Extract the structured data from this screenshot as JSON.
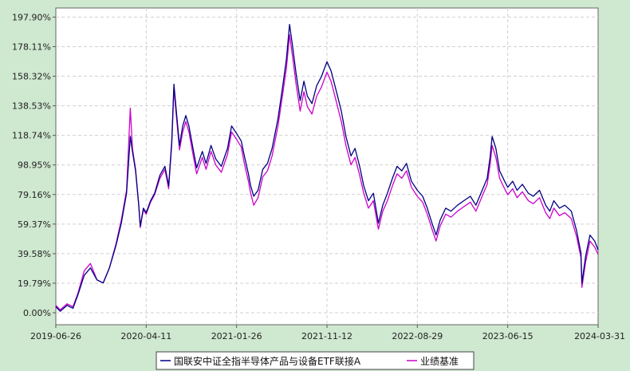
{
  "chart_data": {
    "type": "line",
    "ytick_labels": [
      "197.90%",
      "178.11%",
      "158.32%",
      "138.53%",
      "118.74%",
      "98.95%",
      "79.16%",
      "59.37%",
      "39.58%",
      "19.79%",
      "0.00%"
    ],
    "ytick_values": [
      197.9,
      178.11,
      158.32,
      138.53,
      118.74,
      98.95,
      79.16,
      59.37,
      39.58,
      19.79,
      0.0
    ],
    "xtick_labels": [
      "2019-06-26",
      "2020-04-11",
      "2021-01-26",
      "2021-11-12",
      "2022-08-29",
      "2023-06-15",
      "2024-03-31"
    ],
    "xtick_dates": [
      "2019-06-26",
      "2020-04-11",
      "2021-01-26",
      "2021-11-12",
      "2022-08-29",
      "2023-06-15",
      "2024-03-31"
    ],
    "x_range": [
      "2019-06-26",
      "2024-03-31"
    ],
    "ylim": [
      -8,
      204
    ],
    "grid": true,
    "legend_position": "bottom-center",
    "series": [
      {
        "name": "国联安中证全指半导体产品与设备ETF联接A",
        "color": "#000080",
        "points": [
          [
            "2019-06-26",
            4
          ],
          [
            "2019-07-10",
            1
          ],
          [
            "2019-08-01",
            5
          ],
          [
            "2019-08-20",
            3
          ],
          [
            "2019-09-05",
            12
          ],
          [
            "2019-09-25",
            25
          ],
          [
            "2019-10-15",
            30
          ],
          [
            "2019-11-05",
            22
          ],
          [
            "2019-11-25",
            20
          ],
          [
            "2019-12-15",
            30
          ],
          [
            "2020-01-05",
            45
          ],
          [
            "2020-01-22",
            60
          ],
          [
            "2020-02-08",
            80
          ],
          [
            "2020-02-20",
            118
          ],
          [
            "2020-02-27",
            108
          ],
          [
            "2020-03-08",
            95
          ],
          [
            "2020-03-18",
            72
          ],
          [
            "2020-03-23",
            58
          ],
          [
            "2020-04-02",
            70
          ],
          [
            "2020-04-11",
            67
          ],
          [
            "2020-04-25",
            75
          ],
          [
            "2020-05-08",
            80
          ],
          [
            "2020-05-25",
            92
          ],
          [
            "2020-06-10",
            98
          ],
          [
            "2020-06-22",
            85
          ],
          [
            "2020-07-02",
            115
          ],
          [
            "2020-07-09",
            153
          ],
          [
            "2020-07-18",
            132
          ],
          [
            "2020-07-27",
            112
          ],
          [
            "2020-08-06",
            125
          ],
          [
            "2020-08-16",
            132
          ],
          [
            "2020-08-26",
            125
          ],
          [
            "2020-09-08",
            110
          ],
          [
            "2020-09-20",
            97
          ],
          [
            "2020-10-08",
            108
          ],
          [
            "2020-10-20",
            100
          ],
          [
            "2020-11-05",
            112
          ],
          [
            "2020-11-20",
            103
          ],
          [
            "2020-12-08",
            98
          ],
          [
            "2020-12-28",
            110
          ],
          [
            "2021-01-10",
            125
          ],
          [
            "2021-01-26",
            120
          ],
          [
            "2021-02-10",
            115
          ],
          [
            "2021-02-20",
            105
          ],
          [
            "2021-03-05",
            93
          ],
          [
            "2021-03-12",
            85
          ],
          [
            "2021-03-22",
            78
          ],
          [
            "2021-04-05",
            82
          ],
          [
            "2021-04-20",
            96
          ],
          [
            "2021-05-05",
            100
          ],
          [
            "2021-05-20",
            110
          ],
          [
            "2021-06-08",
            130
          ],
          [
            "2021-06-22",
            150
          ],
          [
            "2021-07-05",
            170
          ],
          [
            "2021-07-15",
            193
          ],
          [
            "2021-07-25",
            178
          ],
          [
            "2021-08-05",
            160
          ],
          [
            "2021-08-18",
            142
          ],
          [
            "2021-08-30",
            155
          ],
          [
            "2021-09-10",
            145
          ],
          [
            "2021-09-25",
            140
          ],
          [
            "2021-10-10",
            152
          ],
          [
            "2021-10-25",
            158
          ],
          [
            "2021-11-12",
            168
          ],
          [
            "2021-11-25",
            162
          ],
          [
            "2021-12-10",
            150
          ],
          [
            "2021-12-28",
            135
          ],
          [
            "2022-01-12",
            118
          ],
          [
            "2022-01-28",
            105
          ],
          [
            "2022-02-10",
            110
          ],
          [
            "2022-02-25",
            98
          ],
          [
            "2022-03-10",
            85
          ],
          [
            "2022-03-25",
            75
          ],
          [
            "2022-04-10",
            80
          ],
          [
            "2022-04-26",
            60
          ],
          [
            "2022-05-10",
            72
          ],
          [
            "2022-05-25",
            80
          ],
          [
            "2022-06-10",
            90
          ],
          [
            "2022-06-25",
            98
          ],
          [
            "2022-07-10",
            95
          ],
          [
            "2022-07-25",
            100
          ],
          [
            "2022-08-10",
            88
          ],
          [
            "2022-08-29",
            82
          ],
          [
            "2022-09-15",
            78
          ],
          [
            "2022-09-30",
            70
          ],
          [
            "2022-10-15",
            60
          ],
          [
            "2022-10-28",
            52
          ],
          [
            "2022-11-10",
            62
          ],
          [
            "2022-11-28",
            70
          ],
          [
            "2022-12-15",
            68
          ],
          [
            "2023-01-05",
            72
          ],
          [
            "2023-01-25",
            75
          ],
          [
            "2023-02-15",
            78
          ],
          [
            "2023-03-05",
            72
          ],
          [
            "2023-03-25",
            82
          ],
          [
            "2023-04-10",
            90
          ],
          [
            "2023-04-20",
            105
          ],
          [
            "2023-04-26",
            118
          ],
          [
            "2023-05-08",
            110
          ],
          [
            "2023-05-20",
            95
          ],
          [
            "2023-06-05",
            88
          ],
          [
            "2023-06-15",
            84
          ],
          [
            "2023-07-01",
            88
          ],
          [
            "2023-07-15",
            82
          ],
          [
            "2023-08-01",
            86
          ],
          [
            "2023-08-20",
            80
          ],
          [
            "2023-09-05",
            78
          ],
          [
            "2023-09-25",
            82
          ],
          [
            "2023-10-15",
            72
          ],
          [
            "2023-10-28",
            68
          ],
          [
            "2023-11-10",
            75
          ],
          [
            "2023-11-28",
            70
          ],
          [
            "2023-12-15",
            72
          ],
          [
            "2024-01-05",
            68
          ],
          [
            "2024-01-22",
            55
          ],
          [
            "2024-02-05",
            40
          ],
          [
            "2024-02-08",
            20
          ],
          [
            "2024-02-20",
            38
          ],
          [
            "2024-03-05",
            52
          ],
          [
            "2024-03-20",
            48
          ],
          [
            "2024-03-31",
            42
          ]
        ]
      },
      {
        "name": "业绩基准",
        "color": "#cc00cc",
        "points": [
          [
            "2019-06-26",
            5
          ],
          [
            "2019-07-10",
            2
          ],
          [
            "2019-08-01",
            6
          ],
          [
            "2019-08-20",
            4
          ],
          [
            "2019-09-05",
            13
          ],
          [
            "2019-09-25",
            28
          ],
          [
            "2019-10-15",
            33
          ],
          [
            "2019-11-05",
            22
          ],
          [
            "2019-11-25",
            20
          ],
          [
            "2019-12-15",
            30
          ],
          [
            "2020-01-05",
            46
          ],
          [
            "2020-01-22",
            62
          ],
          [
            "2020-02-08",
            82
          ],
          [
            "2020-02-20",
            137
          ],
          [
            "2020-02-27",
            110
          ],
          [
            "2020-03-08",
            96
          ],
          [
            "2020-03-18",
            72
          ],
          [
            "2020-03-23",
            57
          ],
          [
            "2020-04-02",
            69
          ],
          [
            "2020-04-11",
            66
          ],
          [
            "2020-04-25",
            74
          ],
          [
            "2020-05-08",
            79
          ],
          [
            "2020-05-25",
            90
          ],
          [
            "2020-06-10",
            96
          ],
          [
            "2020-06-22",
            83
          ],
          [
            "2020-07-02",
            113
          ],
          [
            "2020-07-09",
            150
          ],
          [
            "2020-07-18",
            129
          ],
          [
            "2020-07-27",
            109
          ],
          [
            "2020-08-06",
            121
          ],
          [
            "2020-08-16",
            128
          ],
          [
            "2020-08-26",
            121
          ],
          [
            "2020-09-08",
            106
          ],
          [
            "2020-09-20",
            93
          ],
          [
            "2020-10-08",
            104
          ],
          [
            "2020-10-20",
            96
          ],
          [
            "2020-11-05",
            108
          ],
          [
            "2020-11-20",
            99
          ],
          [
            "2020-12-08",
            94
          ],
          [
            "2020-12-28",
            106
          ],
          [
            "2021-01-10",
            121
          ],
          [
            "2021-01-26",
            116
          ],
          [
            "2021-02-10",
            111
          ],
          [
            "2021-02-20",
            100
          ],
          [
            "2021-03-05",
            88
          ],
          [
            "2021-03-12",
            80
          ],
          [
            "2021-03-22",
            72
          ],
          [
            "2021-04-05",
            77
          ],
          [
            "2021-04-20",
            91
          ],
          [
            "2021-05-05",
            95
          ],
          [
            "2021-05-20",
            105
          ],
          [
            "2021-06-08",
            125
          ],
          [
            "2021-06-22",
            145
          ],
          [
            "2021-07-05",
            164
          ],
          [
            "2021-07-15",
            186
          ],
          [
            "2021-07-25",
            171
          ],
          [
            "2021-08-05",
            153
          ],
          [
            "2021-08-18",
            135
          ],
          [
            "2021-08-30",
            148
          ],
          [
            "2021-09-10",
            138
          ],
          [
            "2021-09-25",
            133
          ],
          [
            "2021-10-10",
            145
          ],
          [
            "2021-10-25",
            151
          ],
          [
            "2021-11-12",
            161
          ],
          [
            "2021-11-25",
            155
          ],
          [
            "2021-12-10",
            143
          ],
          [
            "2021-12-28",
            128
          ],
          [
            "2022-01-12",
            112
          ],
          [
            "2022-01-28",
            99
          ],
          [
            "2022-02-10",
            104
          ],
          [
            "2022-02-25",
            92
          ],
          [
            "2022-03-10",
            80
          ],
          [
            "2022-03-25",
            70
          ],
          [
            "2022-04-10",
            75
          ],
          [
            "2022-04-26",
            56
          ],
          [
            "2022-05-10",
            68
          ],
          [
            "2022-05-25",
            75
          ],
          [
            "2022-06-10",
            85
          ],
          [
            "2022-06-25",
            93
          ],
          [
            "2022-07-10",
            90
          ],
          [
            "2022-07-25",
            95
          ],
          [
            "2022-08-10",
            84
          ],
          [
            "2022-08-29",
            78
          ],
          [
            "2022-09-15",
            74
          ],
          [
            "2022-09-30",
            66
          ],
          [
            "2022-10-15",
            56
          ],
          [
            "2022-10-28",
            48
          ],
          [
            "2022-11-10",
            58
          ],
          [
            "2022-11-28",
            66
          ],
          [
            "2022-12-15",
            64
          ],
          [
            "2023-01-05",
            68
          ],
          [
            "2023-01-25",
            71
          ],
          [
            "2023-02-15",
            74
          ],
          [
            "2023-03-05",
            68
          ],
          [
            "2023-03-25",
            78
          ],
          [
            "2023-04-10",
            86
          ],
          [
            "2023-04-20",
            100
          ],
          [
            "2023-04-26",
            112
          ],
          [
            "2023-05-08",
            104
          ],
          [
            "2023-05-20",
            90
          ],
          [
            "2023-06-05",
            83
          ],
          [
            "2023-06-15",
            79
          ],
          [
            "2023-07-01",
            83
          ],
          [
            "2023-07-15",
            77
          ],
          [
            "2023-08-01",
            81
          ],
          [
            "2023-08-20",
            75
          ],
          [
            "2023-09-05",
            73
          ],
          [
            "2023-09-25",
            77
          ],
          [
            "2023-10-15",
            67
          ],
          [
            "2023-10-28",
            63
          ],
          [
            "2023-11-10",
            70
          ],
          [
            "2023-11-28",
            65
          ],
          [
            "2023-12-15",
            67
          ],
          [
            "2024-01-05",
            63
          ],
          [
            "2024-01-22",
            51
          ],
          [
            "2024-02-05",
            37
          ],
          [
            "2024-02-08",
            17
          ],
          [
            "2024-02-20",
            34
          ],
          [
            "2024-03-05",
            48
          ],
          [
            "2024-03-20",
            44
          ],
          [
            "2024-03-31",
            39
          ]
        ]
      }
    ]
  }
}
